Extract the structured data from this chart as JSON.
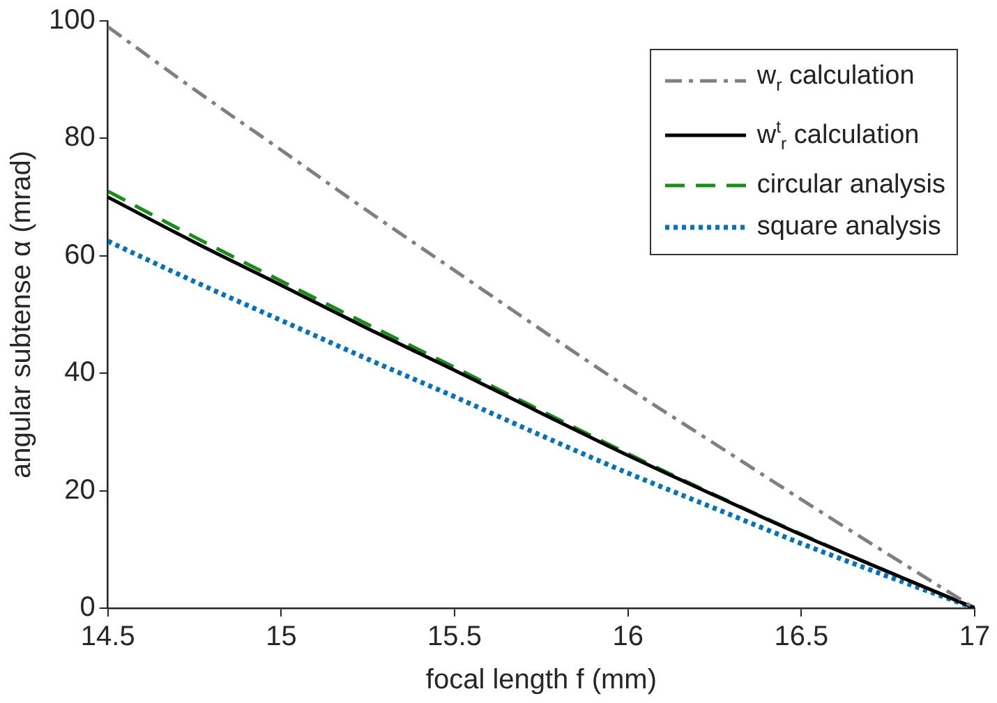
{
  "chart_data": {
    "type": "line",
    "xlabel": "focal length f (mm)",
    "ylabel": "angular subtense α (mrad)",
    "x": [
      14.5,
      14.75,
      15,
      15.25,
      15.5,
      15.75,
      16,
      16.25,
      16.5,
      16.75,
      17
    ],
    "series": [
      {
        "name": "w$_{r}$ calculation",
        "color": "#808080",
        "line_style": "dashdot",
        "values": [
          99,
          88.3,
          78,
          67.6,
          57.5,
          47.4,
          37.5,
          28,
          18.5,
          9.2,
          0
        ]
      },
      {
        "name": "w$^{t}$$_{r}$ calculation",
        "color": "#000000",
        "line_style": "solid",
        "values": [
          70,
          62.3,
          55,
          47.6,
          40.5,
          33.2,
          26,
          19.2,
          12.5,
          6.2,
          0
        ]
      },
      {
        "name": "circular analysis",
        "color": "#1a8c1a",
        "line_style": "dashed",
        "values": [
          71,
          63.2,
          55.7,
          48.3,
          41,
          33.6,
          26.3,
          19.3,
          12.6,
          6.2,
          0
        ]
      },
      {
        "name": "square analysis",
        "color": "#0072bd",
        "line_style": "dotted",
        "values": [
          62.5,
          55.6,
          49,
          42.4,
          36,
          29.4,
          23,
          17,
          11,
          5.4,
          0
        ]
      }
    ],
    "xlim": [
      14.5,
      17
    ],
    "xticks": [
      14.5,
      15,
      15.5,
      16,
      16.5,
      17
    ],
    "ylim": [
      0,
      100
    ],
    "yticks": [
      0,
      20,
      40,
      60,
      80,
      100
    ],
    "grid": false,
    "legend": "top right",
    "marker": "none"
  }
}
